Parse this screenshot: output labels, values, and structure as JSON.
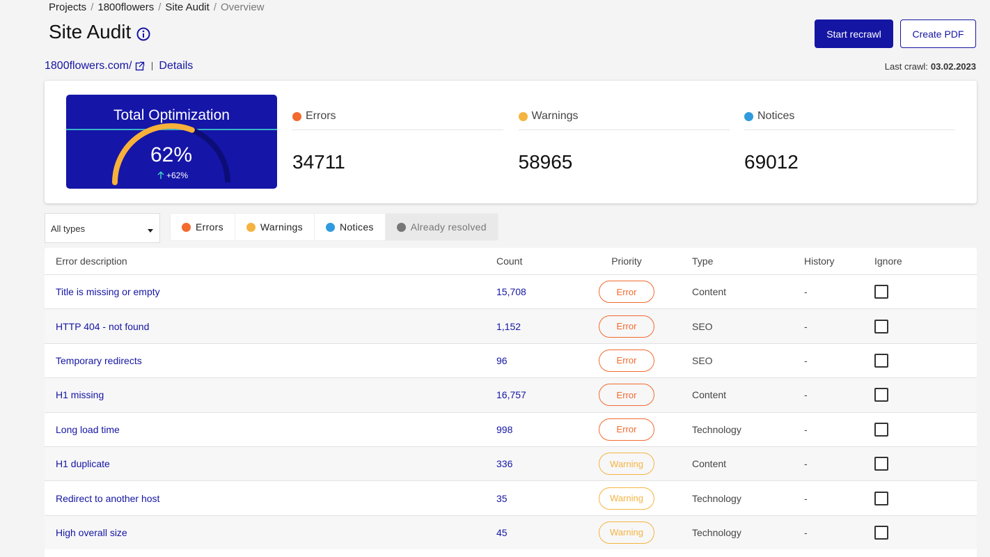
{
  "breadcrumb": [
    "Projects",
    "1800flowers",
    "Site Audit",
    "Overview"
  ],
  "title": "Site Audit",
  "buttons": {
    "recrawl": "Start recrawl",
    "pdf": "Create PDF"
  },
  "site": {
    "url": "1800flowers.com/",
    "details": "Details"
  },
  "last_crawl": {
    "label": "Last crawl:",
    "date": "03.02.2023"
  },
  "summary": {
    "title": "Total Optimization",
    "score": 62,
    "score_label": "62%",
    "change": "+62%",
    "stats": [
      {
        "name": "Errors",
        "value": "34711",
        "color": "#f26a2e"
      },
      {
        "name": "Warnings",
        "value": "58965",
        "color": "#f5b340"
      },
      {
        "name": "Notices",
        "value": "69012",
        "color": "#2f9bde"
      }
    ]
  },
  "filters": {
    "select": "All types",
    "chips": [
      {
        "name": "Errors",
        "color": "#f26a2e"
      },
      {
        "name": "Warnings",
        "color": "#f5b340"
      },
      {
        "name": "Notices",
        "color": "#2f9bde"
      },
      {
        "name": "Already resolved",
        "color": "#777777"
      }
    ]
  },
  "priority_colors": {
    "Error": "#f26a2e",
    "Warning": "#f5b340"
  },
  "table": {
    "columns": [
      "Error description",
      "Count",
      "Priority",
      "Type",
      "History",
      "Ignore"
    ],
    "rows": [
      [
        "Title is missing or empty",
        "15,708",
        "Error",
        "Content",
        "-"
      ],
      [
        "HTTP 404 - not found",
        "1,152",
        "Error",
        "SEO",
        "-"
      ],
      [
        "Temporary redirects",
        "96",
        "Error",
        "SEO",
        "-"
      ],
      [
        "H1 missing",
        "16,757",
        "Error",
        "Content",
        "-"
      ],
      [
        "Long load time",
        "998",
        "Error",
        "Technology",
        "-"
      ],
      [
        "H1 duplicate",
        "336",
        "Warning",
        "Content",
        "-"
      ],
      [
        "Redirect to another host",
        "35",
        "Warning",
        "Technology",
        "-"
      ],
      [
        "High overall size",
        "45",
        "Warning",
        "Technology",
        "-"
      ]
    ]
  }
}
